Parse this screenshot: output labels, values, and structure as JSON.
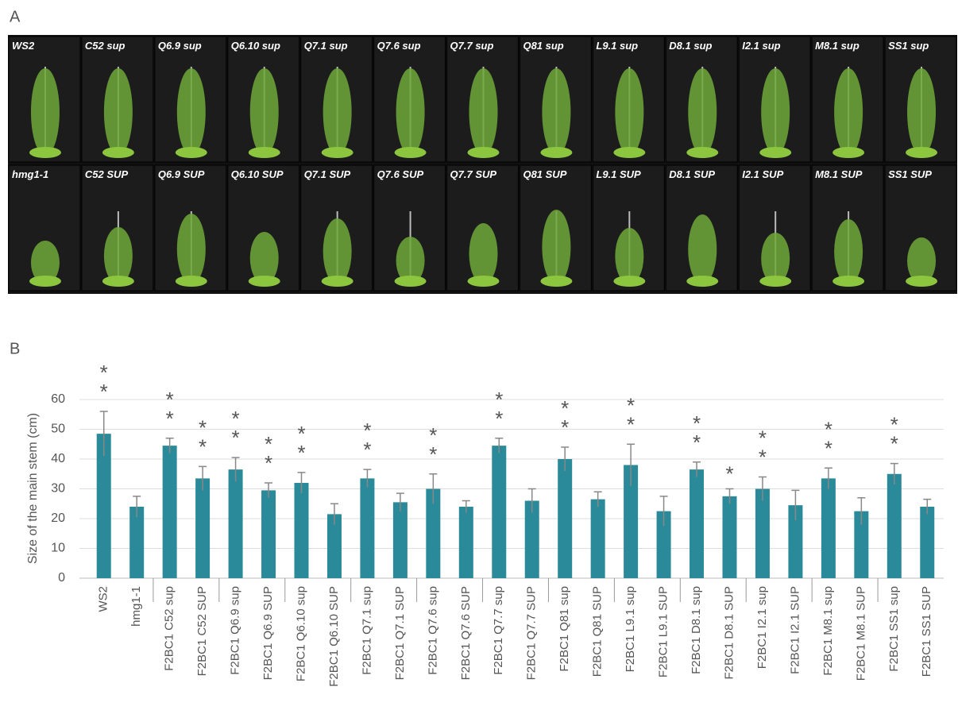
{
  "panel_a": {
    "label": "A",
    "top_row": [
      "WS2",
      "C52 sup",
      "Q6.9 sup",
      "Q6.10 sup",
      "Q7.1 sup",
      "Q7.6 sup",
      "Q7.7 sup",
      "Q81 sup",
      "L9.1 sup",
      "D8.1 sup",
      "I2.1 sup",
      "M8.1 sup",
      "SS1 sup"
    ],
    "bottom_row": [
      "hmg1-1",
      "C52 SUP",
      "Q6.9 SUP",
      "Q6.10 SUP",
      "Q7.1 SUP",
      "Q7.6 SUP",
      "Q7.7 SUP",
      "Q81 SUP",
      "L9.1 SUP",
      "D8.1 SUP",
      "I2.1 SUP",
      "M8.1 SUP",
      "SS1 SUP"
    ]
  },
  "chart_data": {
    "type": "bar",
    "panel_label": "B",
    "y_label": "Size of the main stem (cm)",
    "categories": [
      "WS2",
      "hmg1-1",
      "F2BC1 C52 sup",
      "F2BC1 C52 SUP",
      "F2BC1 Q6.9 sup",
      "F2BC1 Q6.9 SUP",
      "F2BC1 Q6.10 sup",
      "F2BC1 Q6.10 SUP",
      "F2BC1 Q7.1 sup",
      "F2BC1 Q7.1 SUP",
      "F2BC1 Q7.6 sup",
      "F2BC1 Q7.6 SUP",
      "F2BC1 Q7.7 sup",
      "F2BC1 Q7.7 SUP",
      "F2BC1 Q81 sup",
      "F2BC1 Q81 SUP",
      "F2BC1 L9.1 sup",
      "F2BC1 L9.1 SUP",
      "F2BC1 D8.1 sup",
      "F2BC1 D8.1 SUP",
      "F2BC1 I2.1 sup",
      "F2BC1 I2.1 SUP",
      "F2BC1 M8.1 sup",
      "F2BC1 M8.1 SUP",
      "F2BC1 SS1 sup",
      "F2BC1 SS1 SUP"
    ],
    "values": [
      48.5,
      24,
      44.5,
      33.5,
      36.5,
      29.5,
      32,
      21.5,
      33.5,
      25.5,
      30,
      24,
      44.5,
      26,
      40,
      26.5,
      38,
      22.5,
      36.5,
      27.5,
      30,
      24.5,
      33.5,
      22.5,
      35,
      24
    ],
    "errors": [
      7.5,
      3.5,
      2.5,
      4,
      4,
      2.5,
      3.5,
      3.5,
      3,
      3,
      5,
      2,
      2.5,
      4,
      4,
      2.5,
      7,
      5,
      2.5,
      2.5,
      4,
      5,
      3.5,
      4.5,
      3.5,
      2.5
    ],
    "annotations": [
      "**",
      null,
      "**",
      "**",
      "**",
      "**",
      "**",
      null,
      "**",
      null,
      "**",
      null,
      "**",
      null,
      "**",
      null,
      "**",
      null,
      "**",
      "*",
      "**",
      null,
      "**",
      null,
      "**",
      null
    ],
    "color": "#2b8a99",
    "error_color": "#888888",
    "ylim": [
      0,
      60
    ],
    "yticks": [
      0,
      10,
      20,
      30,
      40,
      50,
      60
    ],
    "grid": true
  }
}
